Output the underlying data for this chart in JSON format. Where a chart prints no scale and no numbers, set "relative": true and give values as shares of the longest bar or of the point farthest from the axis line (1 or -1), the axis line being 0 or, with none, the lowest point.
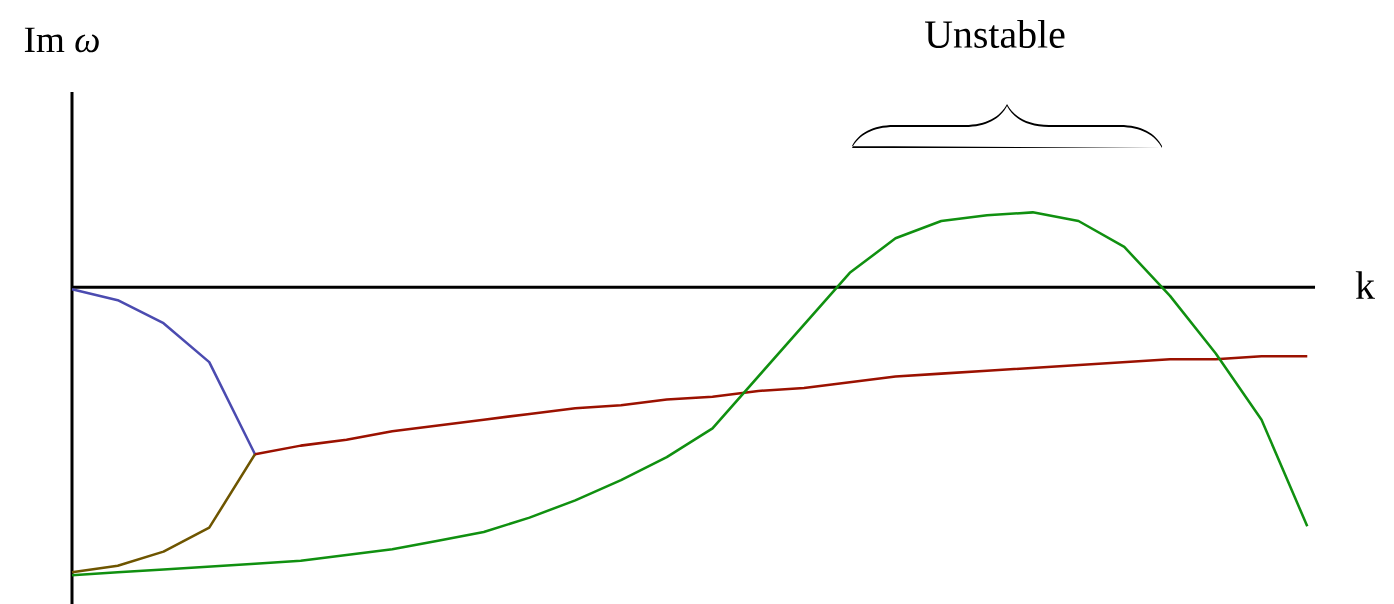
{
  "chart_data": {
    "type": "line",
    "relative": true,
    "xlabel": "k",
    "ylabel": "Im *ω*",
    "annotations": [
      "Unstable"
    ],
    "categories": [
      null,
      null,
      null,
      null,
      null,
      null,
      null,
      null,
      null,
      null,
      null,
      null,
      null,
      null,
      null,
      null,
      null,
      null,
      null,
      null,
      null,
      null,
      null,
      null,
      null,
      null,
      null,
      null
    ],
    "series": [
      {
        "color": "#4b4bb0",
        "values": [
          -0.007,
          -0.045,
          -0.125,
          -0.26,
          -0.58,
          null,
          null,
          null,
          null,
          null,
          null,
          null,
          null,
          null,
          null,
          null,
          null,
          null,
          null,
          null,
          null,
          null,
          null,
          null,
          null,
          null,
          null,
          null
        ]
      },
      {
        "color": "#6e5500",
        "values": [
          -0.99,
          -0.967,
          -0.918,
          -0.835,
          -0.58,
          null,
          null,
          null,
          null,
          null,
          null,
          null,
          null,
          null,
          null,
          null,
          null,
          null,
          null,
          null,
          null,
          null,
          null,
          null,
          null,
          null,
          null,
          null
        ]
      },
      {
        "color": "#9b1100",
        "values": [
          null,
          null,
          null,
          null,
          -0.58,
          -0.55,
          -0.53,
          -0.5,
          -0.48,
          -0.46,
          -0.44,
          -0.42,
          -0.41,
          -0.39,
          -0.38,
          -0.36,
          -0.35,
          -0.33,
          -0.31,
          -0.3,
          -0.29,
          -0.28,
          -0.27,
          -0.26,
          -0.25,
          -0.25,
          -0.24,
          -0.24
        ]
      },
      {
        "color": "#109010",
        "values": [
          -1.0,
          -0.99,
          -0.98,
          -0.97,
          -0.96,
          -0.95,
          -0.93,
          -0.91,
          -0.88,
          -0.85,
          -0.8,
          -0.74,
          -0.67,
          -0.59,
          -0.49,
          -0.31,
          -0.13,
          0.05,
          0.17,
          0.23,
          0.25,
          0.26,
          0.23,
          0.14,
          -0.03,
          -0.23,
          -0.46,
          -0.83
        ]
      }
    ]
  }
}
